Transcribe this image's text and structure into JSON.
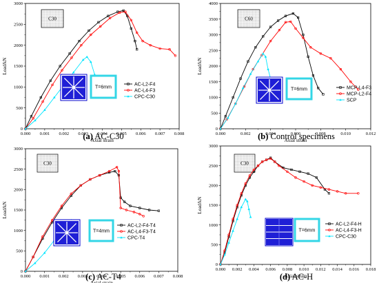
{
  "chart_data": [
    {
      "type": "line",
      "caption_letter": "(a)",
      "caption_text": " AC-C30",
      "grade_label": "C30",
      "inset_label": "T=6mm",
      "section": "cross",
      "xlabel": "Axial strain",
      "ylabel": "Load/kN",
      "xlim": [
        0,
        0.008
      ],
      "ylim": [
        0,
        3000
      ],
      "xticks": [
        "0.000",
        "0.001",
        "0.002",
        "0.003",
        "0.004",
        "0.005",
        "0.006",
        "0.007",
        "0.008"
      ],
      "yticks": [
        "0",
        "500",
        "1000",
        "1500",
        "2000",
        "2500",
        "3000"
      ],
      "colors": {
        "black": "#000000",
        "red": "#ff0000",
        "cyan": "#00e5ff"
      },
      "series": [
        {
          "name": "AC-L2-F4",
          "color": "#000000",
          "marker": "square",
          "x": [
            0,
            0.0003,
            0.0008,
            0.0013,
            0.0018,
            0.0023,
            0.0028,
            0.0033,
            0.0038,
            0.0043,
            0.0048,
            0.0051,
            0.0053,
            0.0055,
            0.0057,
            0.0058
          ],
          "y": [
            0,
            300,
            750,
            1150,
            1500,
            1800,
            2100,
            2350,
            2550,
            2700,
            2800,
            2830,
            2700,
            2400,
            2100,
            1900
          ]
        },
        {
          "name": "AC-L4-F3",
          "color": "#ff0000",
          "marker": "circle",
          "x": [
            0,
            0.0004,
            0.0009,
            0.0014,
            0.0019,
            0.0024,
            0.0029,
            0.0034,
            0.0039,
            0.0044,
            0.0049,
            0.0052,
            0.0055,
            0.0058,
            0.0061,
            0.0065,
            0.007,
            0.0075,
            0.0078
          ],
          "y": [
            0,
            250,
            650,
            1050,
            1400,
            1700,
            2000,
            2250,
            2450,
            2650,
            2780,
            2800,
            2600,
            2300,
            2100,
            2000,
            1920,
            1900,
            1750
          ]
        },
        {
          "name": "CPC-C30",
          "color": "#00e5ff",
          "marker": "triangle",
          "x": [
            0,
            0.0005,
            0.001,
            0.0015,
            0.002,
            0.0025,
            0.003,
            0.0032,
            0.0034,
            0.0036
          ],
          "y": [
            0,
            200,
            450,
            750,
            1050,
            1350,
            1650,
            1720,
            1600,
            1300
          ]
        }
      ]
    },
    {
      "type": "line",
      "caption_letter": "(b)",
      "caption_text": " Control specimens",
      "grade_label": "C60",
      "inset_label": "T=6mm",
      "section": "cross",
      "xlabel": "Axial strain",
      "ylabel": "Load/kN",
      "xlim": [
        0,
        0.012
      ],
      "ylim": [
        0,
        4000
      ],
      "xticks": [
        "0.000",
        "0.002",
        "0.004",
        "0.006",
        "0.008",
        "0.010",
        "0.012"
      ],
      "yticks": [
        "0",
        "500",
        "1000",
        "1500",
        "2000",
        "2500",
        "3000",
        "3500",
        "4000"
      ],
      "series": [
        {
          "name": "MCP-L4-F3",
          "color": "#000000",
          "marker": "square",
          "x": [
            0,
            0.0004,
            0.001,
            0.0016,
            0.0022,
            0.0028,
            0.0034,
            0.004,
            0.0046,
            0.0052,
            0.0058,
            0.0062,
            0.0066,
            0.007,
            0.0074,
            0.0078,
            0.0082
          ],
          "y": [
            0,
            400,
            1000,
            1600,
            2150,
            2600,
            2950,
            3250,
            3450,
            3600,
            3680,
            3550,
            3000,
            2300,
            1700,
            1300,
            1100
          ]
        },
        {
          "name": "MCP-L2-F4",
          "color": "#ff0000",
          "marker": "circle",
          "x": [
            0,
            0.0005,
            0.0012,
            0.0019,
            0.0026,
            0.0033,
            0.004,
            0.0047,
            0.0052,
            0.0056,
            0.006,
            0.0066,
            0.0072,
            0.008,
            0.0088,
            0.0096,
            0.0104,
            0.011
          ],
          "y": [
            0,
            300,
            800,
            1350,
            1900,
            2350,
            2800,
            3150,
            3400,
            3420,
            3200,
            2900,
            2600,
            2400,
            2250,
            1900,
            1500,
            1250
          ]
        },
        {
          "name": "SCP",
          "color": "#00e5ff",
          "marker": "triangle",
          "x": [
            0,
            0.0006,
            0.0012,
            0.0018,
            0.0024,
            0.003,
            0.0034,
            0.0036,
            0.0038,
            0.004
          ],
          "y": [
            0,
            350,
            800,
            1300,
            1750,
            2150,
            2400,
            2300,
            1900,
            1600
          ]
        }
      ]
    },
    {
      "type": "line",
      "caption_letter": "(c)",
      "caption_text": " AC-T4",
      "grade_label": "C30",
      "inset_label": "T=4mm",
      "section": "cross",
      "xlabel": "Axial strain",
      "ylabel": "Load/kN",
      "xlim": [
        0,
        0.008
      ],
      "ylim": [
        0,
        3000
      ],
      "xticks": [
        "0.000",
        "0.001",
        "0.002",
        "0.003",
        "0.004",
        "0.005",
        "0.006",
        "0.007",
        "0.008"
      ],
      "yticks": [
        "0",
        "500",
        "1000",
        "1500",
        "2000",
        "2500",
        "3000"
      ],
      "series": [
        {
          "name": "AC-L2-F4-T4",
          "color": "#000000",
          "marker": "square",
          "x": [
            0,
            0.0004,
            0.0009,
            0.0014,
            0.0019,
            0.0024,
            0.0029,
            0.0034,
            0.0039,
            0.0044,
            0.0047,
            0.0049,
            0.005,
            0.0052,
            0.0055,
            0.006,
            0.0065,
            0.007
          ],
          "y": [
            0,
            350,
            800,
            1200,
            1550,
            1850,
            2100,
            2250,
            2350,
            2420,
            2450,
            2350,
            1800,
            1700,
            1600,
            1550,
            1500,
            1480
          ]
        },
        {
          "name": "AC-L4-F3-T4",
          "color": "#ff0000",
          "marker": "circle",
          "x": [
            0,
            0.0004,
            0.0009,
            0.0014,
            0.0019,
            0.0024,
            0.0029,
            0.0034,
            0.0039,
            0.0044,
            0.0048,
            0.0049,
            0.005,
            0.0053,
            0.0057,
            0.006,
            0.0062
          ],
          "y": [
            0,
            350,
            850,
            1250,
            1600,
            1900,
            2100,
            2250,
            2350,
            2450,
            2550,
            2450,
            1550,
            1500,
            1450,
            1400,
            1350
          ]
        },
        {
          "name": "CPC-T4",
          "color": "#00e5ff",
          "marker": "triangle",
          "x": [
            0,
            0.0005,
            0.001,
            0.0015,
            0.002,
            0.0024,
            0.0025,
            0.0026
          ],
          "y": [
            0,
            200,
            450,
            750,
            1000,
            1250,
            1000,
            800
          ]
        }
      ]
    },
    {
      "type": "line",
      "caption_letter": "(d)",
      "caption_text": " AC-H",
      "grade_label": "C30",
      "inset_label": "T=6mm",
      "section": "bars",
      "xlabel": "Axial strain",
      "ylabel": "Load/kN",
      "xlim": [
        0,
        0.018
      ],
      "ylim": [
        0,
        3000
      ],
      "xticks": [
        "0.000",
        "0.002",
        "0.004",
        "0.006",
        "0.008",
        "0.010",
        "0.012",
        "0.014",
        "0.016",
        "0.018"
      ],
      "yticks": [
        "0",
        "500",
        "1000",
        "1500",
        "2000",
        "2500",
        "3000"
      ],
      "series": [
        {
          "name": "AC-L2-F4-H",
          "color": "#000000",
          "marker": "square",
          "x": [
            0,
            0.0005,
            0.001,
            0.0015,
            0.002,
            0.0025,
            0.003,
            0.0035,
            0.004,
            0.0045,
            0.005,
            0.0055,
            0.006,
            0.0065,
            0.0075,
            0.0085,
            0.0095,
            0.0105,
            0.0115,
            0.0125,
            0.013
          ],
          "y": [
            0,
            300,
            700,
            1100,
            1450,
            1750,
            2000,
            2200,
            2350,
            2500,
            2600,
            2650,
            2700,
            2600,
            2450,
            2400,
            2350,
            2300,
            2200,
            1900,
            1800
          ]
        },
        {
          "name": "AC-L4-F3-H",
          "color": "#ff0000",
          "marker": "circle",
          "x": [
            0,
            0.0005,
            0.001,
            0.0015,
            0.002,
            0.0025,
            0.003,
            0.0035,
            0.004,
            0.0045,
            0.005,
            0.0055,
            0.006,
            0.0065,
            0.007,
            0.008,
            0.009,
            0.01,
            0.011,
            0.012,
            0.013,
            0.014,
            0.015,
            0.0165
          ],
          "y": [
            0,
            350,
            750,
            1150,
            1500,
            1800,
            2050,
            2250,
            2400,
            2500,
            2600,
            2650,
            2680,
            2600,
            2500,
            2350,
            2200,
            2100,
            2000,
            1950,
            1900,
            1850,
            1800,
            1800
          ]
        },
        {
          "name": "CPC-C30",
          "color": "#00e5ff",
          "marker": "triangle",
          "x": [
            0,
            0.0005,
            0.001,
            0.0015,
            0.002,
            0.0025,
            0.003,
            0.0032,
            0.0034,
            0.0036
          ],
          "y": [
            0,
            250,
            550,
            850,
            1150,
            1450,
            1650,
            1600,
            1400,
            1200
          ]
        }
      ]
    }
  ]
}
